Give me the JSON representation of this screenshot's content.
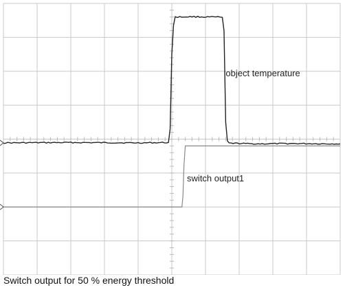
{
  "chart_data": {
    "type": "line",
    "caption": "Switch output for 50 % energy threshold",
    "grid": true,
    "xlim": [
      0,
      10
    ],
    "ylim": [
      0,
      8
    ],
    "series": [
      {
        "name": "object temperature",
        "color": "#222222",
        "x": [
          0,
          2,
          4,
          4.9,
          4.95,
          5.0,
          5.05,
          5.1,
          5.3,
          5.6,
          6.0,
          6.3,
          6.5,
          6.55,
          6.6,
          6.65,
          6.7,
          7.5,
          8.5,
          10
        ],
        "y": [
          3.89,
          3.9,
          3.89,
          3.9,
          4.3,
          6.5,
          7.35,
          7.6,
          7.6,
          7.61,
          7.6,
          7.6,
          7.59,
          7.2,
          4.5,
          3.95,
          3.88,
          3.86,
          3.87,
          3.86
        ]
      },
      {
        "name": "switch output1",
        "color": "#888888",
        "x": [
          0,
          5.3,
          5.33,
          5.36,
          5.4,
          10
        ],
        "y": [
          2.0,
          2.0,
          2.3,
          3.2,
          3.8,
          3.8
        ]
      }
    ],
    "annotations": [
      {
        "text": "object temperature",
        "x": 6.6,
        "y": 5.85
      },
      {
        "text": "switch output1",
        "x": 5.45,
        "y": 2.75
      }
    ]
  }
}
